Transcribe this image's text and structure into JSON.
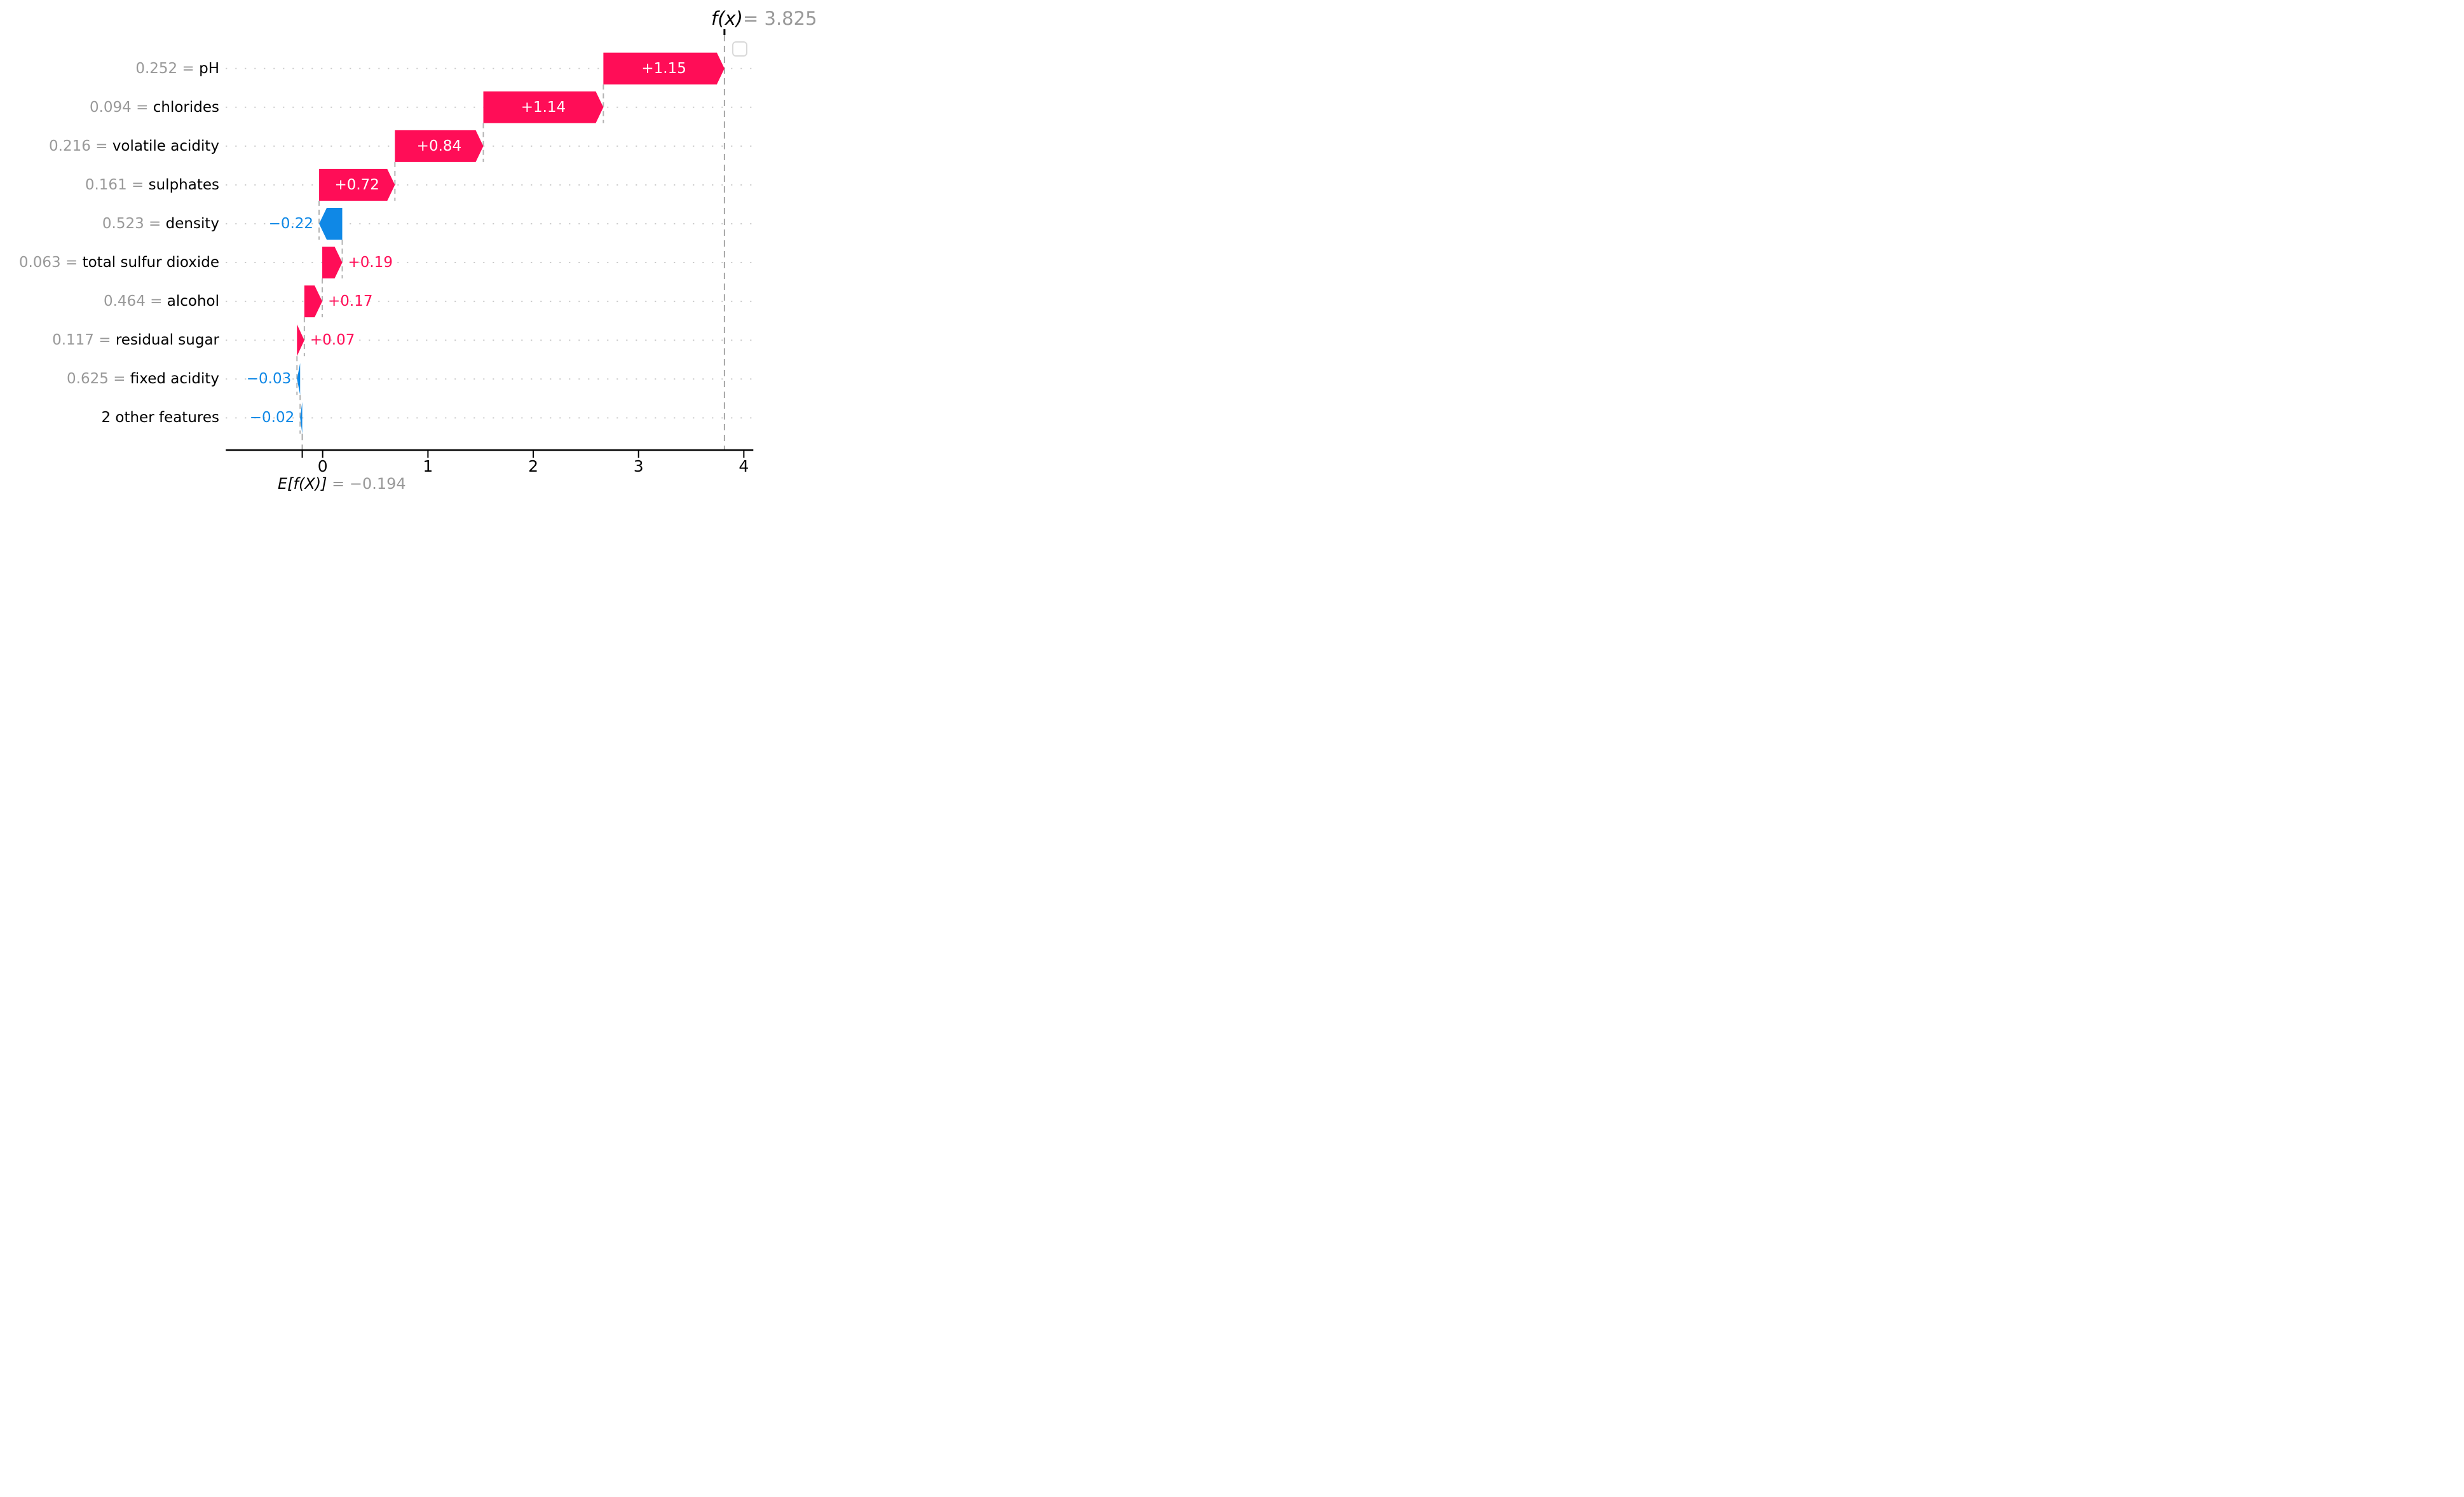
{
  "chart_data": {
    "type": "waterfall",
    "title": "",
    "xlabel": "",
    "ylabel": "",
    "grid": "dotted horizontal rows",
    "legend_position": "none",
    "fx": {
      "math": "f(x)",
      "equals_value": "= 3.825",
      "value": 3.825
    },
    "base": {
      "math": "E[f(X)]",
      "equals_value": " = −0.194",
      "value": -0.194
    },
    "x_axis": {
      "ticks": [
        "0",
        "1",
        "2",
        "3",
        "4"
      ],
      "tick_values": [
        0,
        1,
        2,
        3,
        4
      ],
      "range": [
        -0.905,
        4.11
      ]
    },
    "rows": [
      {
        "feature": "pH",
        "feature_value": "0.252",
        "equals": " = ",
        "contribution": 1.15,
        "label": "+1.15"
      },
      {
        "feature": "chlorides",
        "feature_value": "0.094",
        "equals": " = ",
        "contribution": 1.14,
        "label": "+1.14"
      },
      {
        "feature": "volatile acidity",
        "feature_value": "0.216",
        "equals": " = ",
        "contribution": 0.84,
        "label": "+0.84"
      },
      {
        "feature": "sulphates",
        "feature_value": "0.161",
        "equals": " = ",
        "contribution": 0.72,
        "label": "+0.72"
      },
      {
        "feature": "density",
        "feature_value": "0.523",
        "equals": " = ",
        "contribution": -0.22,
        "label": "−0.22"
      },
      {
        "feature": "total sulfur dioxide",
        "feature_value": "0.063",
        "equals": " = ",
        "contribution": 0.19,
        "label": "+0.19"
      },
      {
        "feature": "alcohol",
        "feature_value": "0.464",
        "equals": " = ",
        "contribution": 0.17,
        "label": "+0.17"
      },
      {
        "feature": "residual sugar",
        "feature_value": "0.117",
        "equals": " = ",
        "contribution": 0.07,
        "label": "+0.07"
      },
      {
        "feature": "fixed acidity",
        "feature_value": "0.625",
        "equals": " = ",
        "contribution": -0.03,
        "label": "−0.03"
      },
      {
        "feature": "2 other features",
        "feature_value": null,
        "equals": null,
        "contribution": -0.02,
        "label": "−0.02"
      }
    ],
    "colors": {
      "positive": "#ff0d57",
      "negative": "#0f88e6",
      "inside_text": "#ffffff",
      "muted_text": "#999999",
      "feature_text": "#000000",
      "gridline": "#c9c9c9",
      "connector": "#b3b3b3",
      "refline": "#a6a6a6",
      "axis": "#000000",
      "legend_box_border": "#d9d9d9"
    },
    "icons": {
      "legend_placeholder": "rounded-square-outline"
    }
  }
}
